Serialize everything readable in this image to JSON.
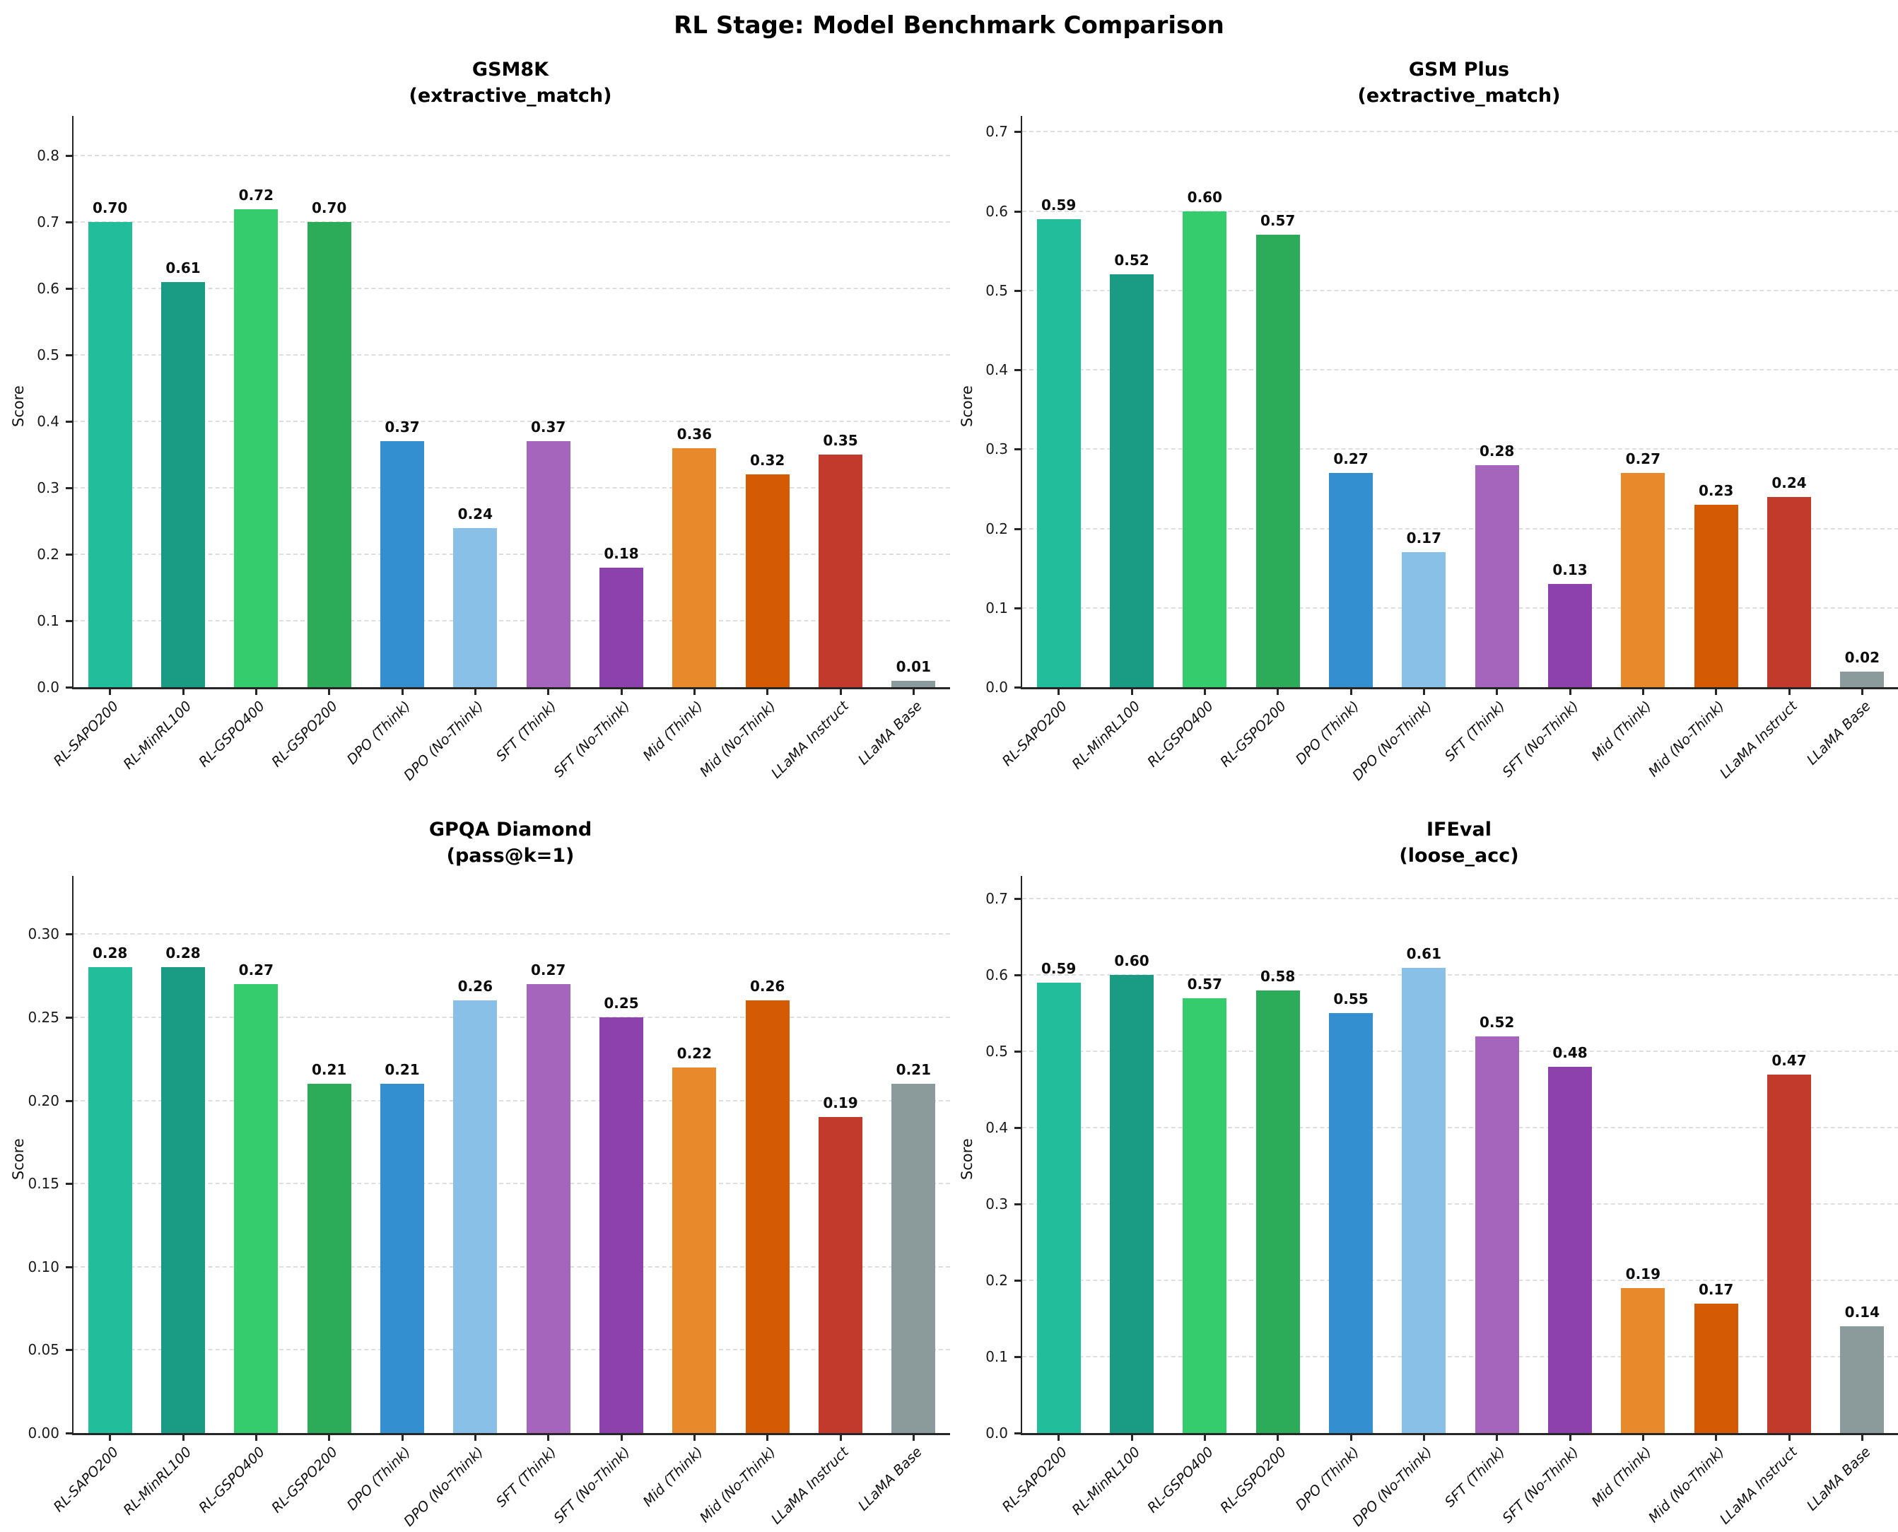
{
  "main_title": "RL Stage: Model Benchmark Comparison",
  "palette": [
    "#22bd9a",
    "#1a9b84",
    "#35cc6d",
    "#2cab58",
    "#348fd1",
    "#89c0e8",
    "#a565bd",
    "#8d41ad",
    "#e8892b",
    "#d45b04",
    "#c23a2c",
    "#8b9a9b"
  ],
  "chart_data": [
    {
      "type": "bar",
      "title": "GSM8K",
      "subtitle": "(extractive_match)",
      "ylabel": "Score",
      "categories": [
        "RL-SAPO200",
        "RL-MinRL100",
        "RL-GSPO400",
        "RL-GSPO200",
        "DPO (Think)",
        "DPO (No-Think)",
        "SFT (Think)",
        "SFT (No-Think)",
        "Mid (Think)",
        "Mid (No-Think)",
        "LLaMA Instruct",
        "LLaMA Base"
      ],
      "values": [
        0.7,
        0.61,
        0.72,
        0.7,
        0.37,
        0.24,
        0.37,
        0.18,
        0.36,
        0.32,
        0.35,
        0.01
      ],
      "value_labels": [
        "0.70",
        "0.61",
        "0.72",
        "0.70",
        "0.37",
        "0.24",
        "0.37",
        "0.18",
        "0.36",
        "0.32",
        "0.35",
        "0.01"
      ],
      "yticks": [
        "0.0",
        "0.1",
        "0.2",
        "0.3",
        "0.4",
        "0.5",
        "0.6",
        "0.7",
        "0.8"
      ],
      "ylim": [
        0,
        0.86
      ],
      "grid": "horizontal-dashed",
      "legend": "none"
    },
    {
      "type": "bar",
      "title": "GSM Plus",
      "subtitle": "(extractive_match)",
      "ylabel": "Score",
      "categories": [
        "RL-SAPO200",
        "RL-MinRL100",
        "RL-GSPO400",
        "RL-GSPO200",
        "DPO (Think)",
        "DPO (No-Think)",
        "SFT (Think)",
        "SFT (No-Think)",
        "Mid (Think)",
        "Mid (No-Think)",
        "LLaMA Instruct",
        "LLaMA Base"
      ],
      "values": [
        0.59,
        0.52,
        0.6,
        0.57,
        0.27,
        0.17,
        0.28,
        0.13,
        0.27,
        0.23,
        0.24,
        0.02
      ],
      "value_labels": [
        "0.59",
        "0.52",
        "0.60",
        "0.57",
        "0.27",
        "0.17",
        "0.28",
        "0.13",
        "0.27",
        "0.23",
        "0.24",
        "0.02"
      ],
      "yticks": [
        "0.0",
        "0.1",
        "0.2",
        "0.3",
        "0.4",
        "0.5",
        "0.6",
        "0.7"
      ],
      "ylim": [
        0,
        0.72
      ],
      "grid": "horizontal-dashed",
      "legend": "none"
    },
    {
      "type": "bar",
      "title": "GPQA Diamond",
      "subtitle": "(pass@k=1)",
      "ylabel": "Score",
      "categories": [
        "RL-SAPO200",
        "RL-MinRL100",
        "RL-GSPO400",
        "RL-GSPO200",
        "DPO (Think)",
        "DPO (No-Think)",
        "SFT (Think)",
        "SFT (No-Think)",
        "Mid (Think)",
        "Mid (No-Think)",
        "LLaMA Instruct",
        "LLaMA Base"
      ],
      "values": [
        0.28,
        0.28,
        0.27,
        0.21,
        0.21,
        0.26,
        0.27,
        0.25,
        0.22,
        0.26,
        0.19,
        0.21
      ],
      "value_labels": [
        "0.28",
        "0.28",
        "0.27",
        "0.21",
        "0.21",
        "0.26",
        "0.27",
        "0.25",
        "0.22",
        "0.26",
        "0.19",
        "0.21"
      ],
      "yticks": [
        "0.00",
        "0.05",
        "0.10",
        "0.15",
        "0.20",
        "0.25",
        "0.30"
      ],
      "ylim": [
        0,
        0.335
      ],
      "grid": "horizontal-dashed",
      "legend": "none"
    },
    {
      "type": "bar",
      "title": "IFEval",
      "subtitle": "(loose_acc)",
      "ylabel": "Score",
      "categories": [
        "RL-SAPO200",
        "RL-MinRL100",
        "RL-GSPO400",
        "RL-GSPO200",
        "DPO (Think)",
        "DPO (No-Think)",
        "SFT (Think)",
        "SFT (No-Think)",
        "Mid (Think)",
        "Mid (No-Think)",
        "LLaMA Instruct",
        "LLaMA Base"
      ],
      "values": [
        0.59,
        0.6,
        0.57,
        0.58,
        0.55,
        0.61,
        0.52,
        0.48,
        0.19,
        0.17,
        0.47,
        0.14
      ],
      "value_labels": [
        "0.59",
        "0.60",
        "0.57",
        "0.58",
        "0.55",
        "0.61",
        "0.52",
        "0.48",
        "0.19",
        "0.17",
        "0.47",
        "0.14"
      ],
      "yticks": [
        "0.0",
        "0.1",
        "0.2",
        "0.3",
        "0.4",
        "0.5",
        "0.6",
        "0.7"
      ],
      "ylim": [
        0,
        0.73
      ],
      "grid": "horizontal-dashed",
      "legend": "none"
    }
  ]
}
